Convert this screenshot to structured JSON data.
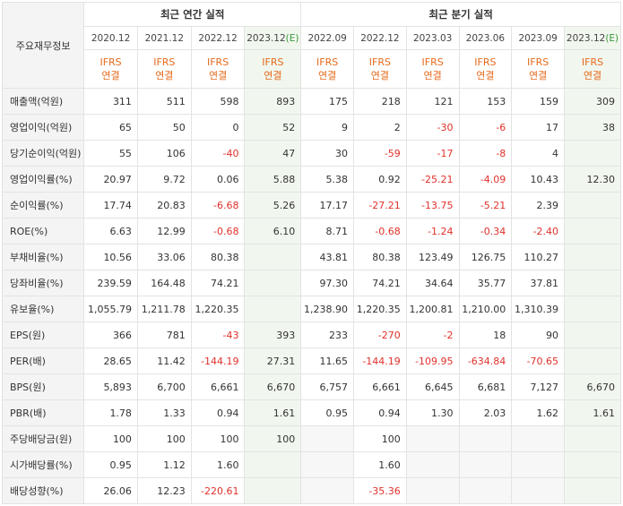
{
  "header": {
    "corner_label": "주요재무정보",
    "annual_title": "최근 연간 실적",
    "quarterly_title": "최근 분기 실적",
    "ifrs_line1": "IFRS",
    "ifrs_line2": "연결"
  },
  "annual_periods": [
    {
      "label": "2020.12",
      "est": ""
    },
    {
      "label": "2021.12",
      "est": ""
    },
    {
      "label": "2022.12",
      "est": ""
    },
    {
      "label": "2023.12",
      "est": "(E)"
    }
  ],
  "quarterly_periods": [
    {
      "label": "2022.09",
      "est": ""
    },
    {
      "label": "2022.12",
      "est": ""
    },
    {
      "label": "2023.03",
      "est": ""
    },
    {
      "label": "2023.06",
      "est": ""
    },
    {
      "label": "2023.09",
      "est": ""
    },
    {
      "label": "2023.12",
      "est": "(E)"
    }
  ],
  "colors": {
    "ifrs_text": "#e56a1c",
    "negative": "#e0312b",
    "estimate_bg": "#f1f7ee",
    "label_bg": "#f4f4f4",
    "empty_bg": "#f7f7f7"
  },
  "rows": [
    {
      "label": "매출액(억원)",
      "values": [
        "311",
        "511",
        "598",
        "893",
        "175",
        "218",
        "121",
        "153",
        "159",
        "309"
      ]
    },
    {
      "label": "영업이익(억원)",
      "values": [
        "65",
        "50",
        "0",
        "52",
        "9",
        "2",
        "-30",
        "-6",
        "17",
        "38"
      ]
    },
    {
      "label": "당기순이익(억원)",
      "values": [
        "55",
        "106",
        "-40",
        "47",
        "30",
        "-59",
        "-17",
        "-8",
        "4",
        ""
      ]
    },
    {
      "label": "영업이익률(%)",
      "values": [
        "20.97",
        "9.72",
        "0.06",
        "5.88",
        "5.38",
        "0.92",
        "-25.21",
        "-4.09",
        "10.43",
        "12.30"
      ]
    },
    {
      "label": "순이익률(%)",
      "values": [
        "17.74",
        "20.83",
        "-6.68",
        "5.26",
        "17.17",
        "-27.21",
        "-13.75",
        "-5.21",
        "2.39",
        ""
      ]
    },
    {
      "label": "ROE(%)",
      "values": [
        "6.63",
        "12.99",
        "-0.68",
        "6.10",
        "8.71",
        "-0.68",
        "-1.24",
        "-0.34",
        "-2.40",
        ""
      ]
    },
    {
      "label": "부채비율(%)",
      "values": [
        "10.56",
        "33.06",
        "80.38",
        "",
        "43.81",
        "80.38",
        "123.49",
        "126.75",
        "110.27",
        ""
      ]
    },
    {
      "label": "당좌비율(%)",
      "values": [
        "239.59",
        "164.48",
        "74.21",
        "",
        "97.30",
        "74.21",
        "34.64",
        "35.77",
        "37.81",
        ""
      ]
    },
    {
      "label": "유보율(%)",
      "values": [
        "1,055.79",
        "1,211.78",
        "1,220.35",
        "",
        "1,238.90",
        "1,220.35",
        "1,200.81",
        "1,210.00",
        "1,310.39",
        ""
      ]
    },
    {
      "label": "EPS(원)",
      "values": [
        "366",
        "781",
        "-43",
        "393",
        "233",
        "-270",
        "-2",
        "18",
        "90",
        ""
      ]
    },
    {
      "label": "PER(배)",
      "values": [
        "28.65",
        "11.42",
        "-144.19",
        "27.31",
        "11.65",
        "-144.19",
        "-109.95",
        "-634.84",
        "-70.65",
        ""
      ]
    },
    {
      "label": "BPS(원)",
      "values": [
        "5,893",
        "6,700",
        "6,661",
        "6,670",
        "6,757",
        "6,661",
        "6,645",
        "6,681",
        "7,127",
        "6,670"
      ]
    },
    {
      "label": "PBR(배)",
      "values": [
        "1.78",
        "1.33",
        "0.94",
        "1.61",
        "0.95",
        "0.94",
        "1.30",
        "2.03",
        "1.62",
        "1.61"
      ]
    },
    {
      "label": "주당배당금(원)",
      "values": [
        "100",
        "100",
        "100",
        "100",
        "",
        "100",
        "",
        "",
        "",
        ""
      ]
    },
    {
      "label": "시가배당률(%)",
      "values": [
        "0.95",
        "1.12",
        "1.60",
        "",
        "",
        "1.60",
        "",
        "",
        "",
        ""
      ]
    },
    {
      "label": "배당성향(%)",
      "values": [
        "26.06",
        "12.23",
        "-220.61",
        "",
        "",
        "-35.36",
        "",
        "",
        "",
        ""
      ]
    }
  ]
}
